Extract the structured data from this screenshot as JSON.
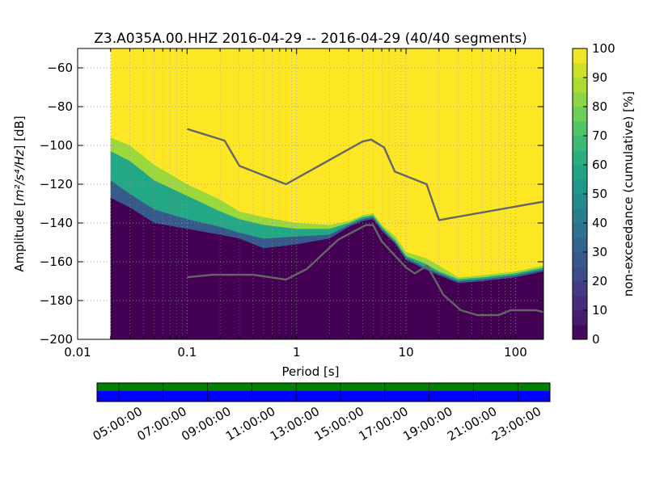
{
  "chart_data": {
    "type": "heatmap",
    "title": "Z3.A035A.00.HHZ   2016-04-29 -- 2016-04-29  (40/40 segments)",
    "xlabel": "Period [s]",
    "ylabel_prefix": "Amplitude [",
    "ylabel_units": "m²/s⁴/Hz",
    "ylabel_suffix": "] [dB]",
    "x_scale": "log",
    "xlim": [
      0.01,
      180
    ],
    "ylim": [
      -200,
      -50
    ],
    "x_ticks": [
      {
        "value": 0.01,
        "label": "0.01"
      },
      {
        "value": 0.1,
        "label": "0.1"
      },
      {
        "value": 1,
        "label": "1"
      },
      {
        "value": 10,
        "label": "10"
      },
      {
        "value": 100,
        "label": "100"
      }
    ],
    "y_ticks": [
      -60,
      -80,
      -100,
      -120,
      -140,
      -160,
      -180,
      -200
    ],
    "data_start_period": 0.02,
    "grid": true,
    "colorbar": {
      "label": "non-exceedance (cumulative) [%]",
      "min": 0,
      "max": 100,
      "ticks": [
        0,
        10,
        20,
        30,
        40,
        50,
        60,
        70,
        80,
        90,
        100
      ],
      "colormap": "viridis"
    },
    "percentile_contours": {
      "p100_upper_edge": [
        [
          0.02,
          -92
        ],
        [
          0.03,
          -95
        ],
        [
          0.05,
          -105
        ],
        [
          0.1,
          -115
        ],
        [
          0.2,
          -123
        ],
        [
          0.3,
          -130
        ],
        [
          0.5,
          -134
        ],
        [
          1,
          -137
        ],
        [
          2,
          -139
        ],
        [
          3,
          -138
        ],
        [
          4,
          -135
        ],
        [
          5,
          -134
        ],
        [
          6,
          -139
        ],
        [
          8,
          -145
        ],
        [
          10,
          -152
        ],
        [
          15,
          -153
        ],
        [
          20,
          -156
        ],
        [
          30,
          -167
        ],
        [
          50,
          -166
        ],
        [
          100,
          -163
        ],
        [
          180,
          -160
        ]
      ],
      "p90_edge": [
        [
          0.02,
          -96
        ],
        [
          0.03,
          -100
        ],
        [
          0.05,
          -110
        ],
        [
          0.1,
          -120
        ],
        [
          0.2,
          -128
        ],
        [
          0.3,
          -134
        ],
        [
          0.5,
          -137
        ],
        [
          1,
          -140
        ],
        [
          2,
          -141
        ],
        [
          3,
          -139
        ],
        [
          4,
          -136
        ],
        [
          5,
          -135
        ],
        [
          6,
          -141
        ],
        [
          8,
          -147
        ],
        [
          10,
          -155
        ],
        [
          15,
          -158
        ],
        [
          20,
          -162
        ],
        [
          30,
          -168
        ],
        [
          50,
          -167
        ],
        [
          100,
          -165
        ],
        [
          180,
          -162
        ]
      ],
      "p60_edge": [
        [
          0.02,
          -103
        ],
        [
          0.03,
          -108
        ],
        [
          0.05,
          -118
        ],
        [
          0.1,
          -126
        ],
        [
          0.2,
          -134
        ],
        [
          0.3,
          -138
        ],
        [
          0.5,
          -141
        ],
        [
          1,
          -143
        ],
        [
          2,
          -143
        ],
        [
          3,
          -140
        ],
        [
          4,
          -137
        ],
        [
          5,
          -136
        ],
        [
          6,
          -142
        ],
        [
          8,
          -149
        ],
        [
          10,
          -157
        ],
        [
          15,
          -161
        ],
        [
          20,
          -165
        ],
        [
          30,
          -169
        ],
        [
          50,
          -168
        ],
        [
          100,
          -166
        ],
        [
          180,
          -163
        ]
      ],
      "p20_edge": [
        [
          0.02,
          -118
        ],
        [
          0.03,
          -125
        ],
        [
          0.05,
          -133
        ],
        [
          0.1,
          -138
        ],
        [
          0.2,
          -142
        ],
        [
          0.3,
          -145
        ],
        [
          0.5,
          -148
        ],
        [
          1,
          -147
        ],
        [
          2,
          -146
        ],
        [
          3,
          -141
        ],
        [
          4,
          -138
        ],
        [
          5,
          -137
        ],
        [
          6,
          -143
        ],
        [
          8,
          -150
        ],
        [
          10,
          -158
        ],
        [
          15,
          -163
        ],
        [
          20,
          -166
        ],
        [
          30,
          -170
        ],
        [
          50,
          -169
        ],
        [
          100,
          -167
        ],
        [
          180,
          -164
        ]
      ],
      "p0_lower_edge": [
        [
          0.02,
          -127
        ],
        [
          0.03,
          -132
        ],
        [
          0.05,
          -140
        ],
        [
          0.1,
          -143
        ],
        [
          0.2,
          -146
        ],
        [
          0.3,
          -148
        ],
        [
          0.5,
          -153
        ],
        [
          1,
          -151
        ],
        [
          2,
          -148
        ],
        [
          3,
          -142
        ],
        [
          4,
          -139
        ],
        [
          5,
          -138
        ],
        [
          6,
          -144
        ],
        [
          8,
          -151
        ],
        [
          10,
          -159
        ],
        [
          15,
          -164
        ],
        [
          20,
          -167
        ],
        [
          30,
          -171
        ],
        [
          50,
          -170
        ],
        [
          100,
          -168
        ],
        [
          180,
          -165
        ]
      ]
    },
    "model_curves": [
      {
        "points": [
          [
            0.1,
            -91.5
          ],
          [
            0.22,
            -97.5
          ],
          [
            0.3,
            -110.5
          ],
          [
            0.8,
            -120
          ],
          [
            4,
            -98
          ],
          [
            4.8,
            -97
          ],
          [
            6.3,
            -101
          ],
          [
            7.9,
            -113.5
          ],
          [
            15.4,
            -120
          ],
          [
            20,
            -138.5
          ],
          [
            180,
            -129
          ]
        ]
      },
      {
        "points": [
          [
            0.1,
            -168
          ],
          [
            0.17,
            -166.7
          ],
          [
            0.4,
            -166.7
          ],
          [
            0.8,
            -169.2
          ],
          [
            1.24,
            -163.7
          ],
          [
            2.4,
            -148.6
          ],
          [
            4.3,
            -141.1
          ],
          [
            5,
            -141
          ],
          [
            6,
            -149.5
          ],
          [
            10,
            -163
          ],
          [
            12,
            -166
          ],
          [
            15.6,
            -162
          ],
          [
            21.9,
            -177
          ],
          [
            31.6,
            -185
          ],
          [
            45,
            -187.5
          ],
          [
            70,
            -187.5
          ],
          [
            90,
            -185
          ],
          [
            154,
            -185
          ],
          [
            180,
            -186
          ]
        ]
      }
    ],
    "availability_bar": {
      "colors": {
        "top": "#008000",
        "bottom": "#0000ff"
      },
      "time_labels": [
        "05:00:00",
        "07:00:00",
        "09:00:00",
        "11:00:00",
        "13:00:00",
        "15:00:00",
        "17:00:00",
        "19:00:00",
        "21:00:00",
        "23:00:00"
      ]
    }
  }
}
